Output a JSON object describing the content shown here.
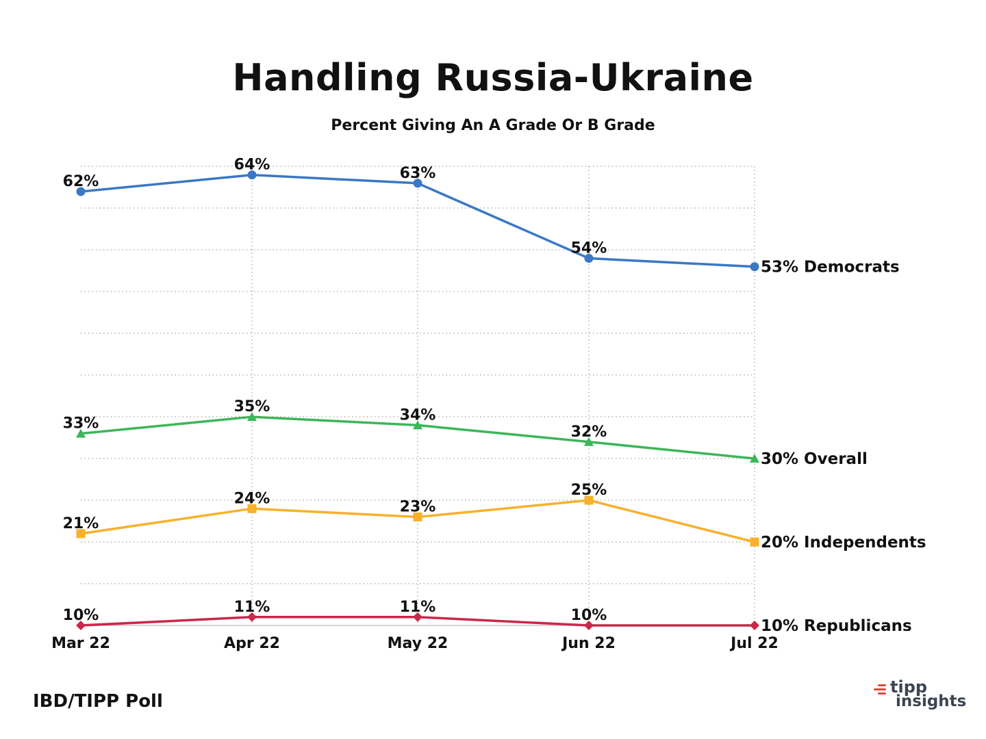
{
  "chart_data": {
    "type": "line",
    "title": "Handling Russia-Ukraine",
    "subtitle": "Percent Giving An A Grade Or B Grade",
    "xlabel": "",
    "ylabel": "",
    "categories": [
      "Mar 22",
      "Apr 22",
      "May 22",
      "Jun 22",
      "Jul 22"
    ],
    "ylim": [
      10,
      62
    ],
    "grid": true,
    "value_suffix": "%",
    "series": [
      {
        "name": "Democrats",
        "values": [
          62,
          64,
          63,
          54,
          53
        ],
        "color": "#3a78c4",
        "marker": "circle"
      },
      {
        "name": "Overall",
        "values": [
          33,
          35,
          34,
          32,
          30
        ],
        "color": "#3cb65a",
        "marker": "triangle"
      },
      {
        "name": "Independents",
        "values": [
          21,
          24,
          23,
          25,
          20
        ],
        "color": "#f7b12a",
        "marker": "square"
      },
      {
        "name": "Republicans",
        "values": [
          10,
          11,
          11,
          10,
          10
        ],
        "color": "#c8284a",
        "marker": "diamond"
      }
    ]
  },
  "footer": {
    "source": "IBD/TIPP Poll",
    "brand_line1": "tipp",
    "brand_line2": "insights"
  }
}
